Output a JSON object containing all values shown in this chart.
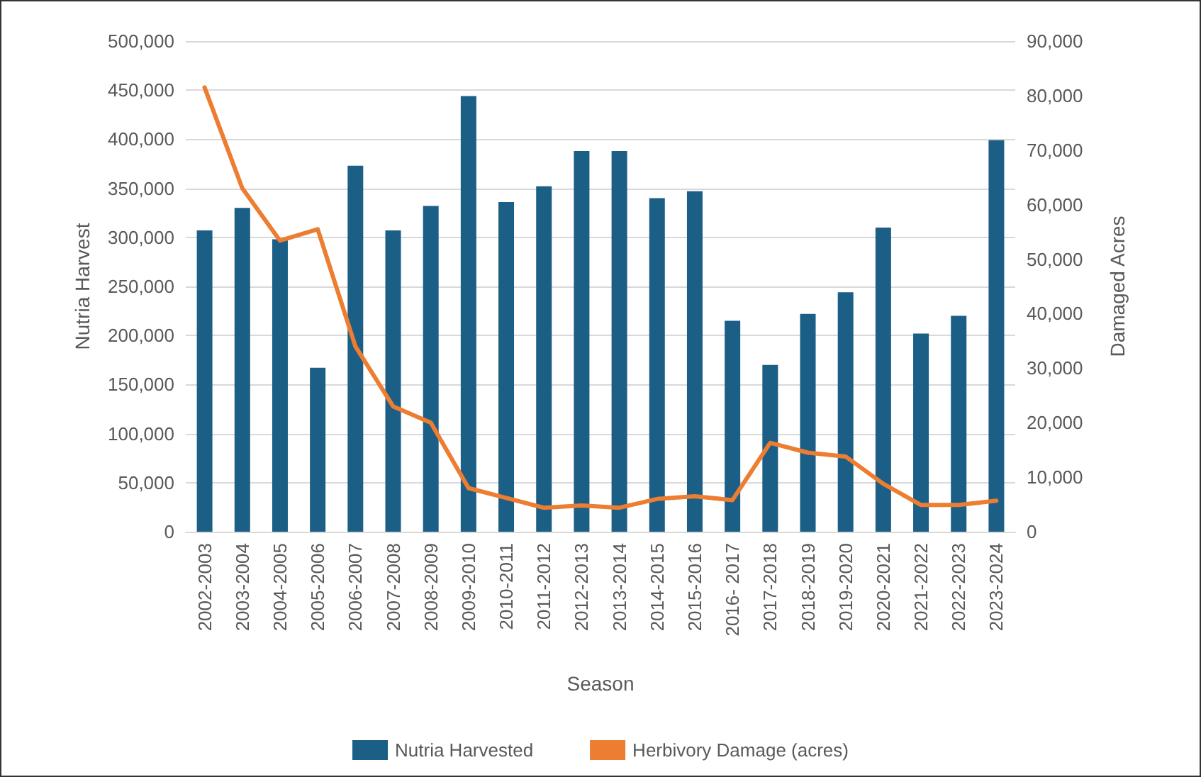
{
  "chart_data": {
    "type": "bar",
    "xlabel": "Season",
    "ylabel": "Nutria Harvest",
    "y2label": "Damaged Acres",
    "categories": [
      "2002-2003",
      "2003-2004",
      "2004-2005",
      "2005-2006",
      "2006-2007",
      "2007-2008",
      "2008-2009",
      "2009-2010",
      "2010-2011",
      "2011-2012",
      "2012-2013",
      "2013-2014",
      "2014-2015",
      "2015-2016",
      "2016- 2017",
      "2017-2018",
      "2018-2019",
      "2019-2020",
      "2020-2021",
      "2021-2022",
      "2022-2023",
      "2023-2024"
    ],
    "series": [
      {
        "name": "Nutria Harvested",
        "color": "#1b5e86",
        "values": [
          307000,
          330000,
          298000,
          167000,
          373000,
          307000,
          332000,
          444000,
          336000,
          352000,
          388000,
          388000,
          340000,
          347000,
          215000,
          170000,
          222000,
          244000,
          310000,
          202000,
          220000,
          399000
        ]
      },
      {
        "name": "Herbivory Damage (acres)",
        "type": "line",
        "axis": "y2",
        "color": "#ed7d31",
        "values": [
          81500,
          63000,
          53400,
          55500,
          34000,
          23000,
          20000,
          8000,
          6200,
          4400,
          4800,
          4400,
          6000,
          6500,
          5800,
          16300,
          14500,
          13800,
          8800,
          4900,
          4900,
          5700
        ]
      }
    ],
    "ylim": [
      0,
      500000
    ],
    "yticks": [
      0,
      {
        "value": 50000,
        "label": "50,000"
      },
      {
        "value": 100000,
        "label": "100,000"
      },
      {
        "value": 150000,
        "label": "150,000"
      },
      {
        "value": 200000,
        "label": "200,000"
      },
      {
        "value": 250000,
        "label": "250,000"
      },
      {
        "value": 300000,
        "label": "300,000"
      },
      {
        "value": 350000,
        "label": "350,000"
      },
      {
        "value": 400000,
        "label": "400,000"
      },
      {
        "value": 450000,
        "label": "450,000"
      },
      {
        "value": 500000,
        "label": "500,000"
      }
    ],
    "y2lim": [
      0,
      90000
    ],
    "y2ticks": [
      0,
      {
        "value": 10000,
        "label": "10,000"
      },
      {
        "value": 20000,
        "label": "20,000"
      },
      {
        "value": 30000,
        "label": "30,000"
      },
      {
        "value": 40000,
        "label": "40,000"
      },
      {
        "value": 50000,
        "label": "50,000"
      },
      {
        "value": 60000,
        "label": "60,000"
      },
      {
        "value": 70000,
        "label": "70,000"
      },
      {
        "value": 80000,
        "label": "80,000"
      },
      {
        "value": 90000,
        "label": "90,000"
      }
    ],
    "grid": "y",
    "legend": "bottom",
    "marker": "none",
    "line_style": "solid"
  }
}
